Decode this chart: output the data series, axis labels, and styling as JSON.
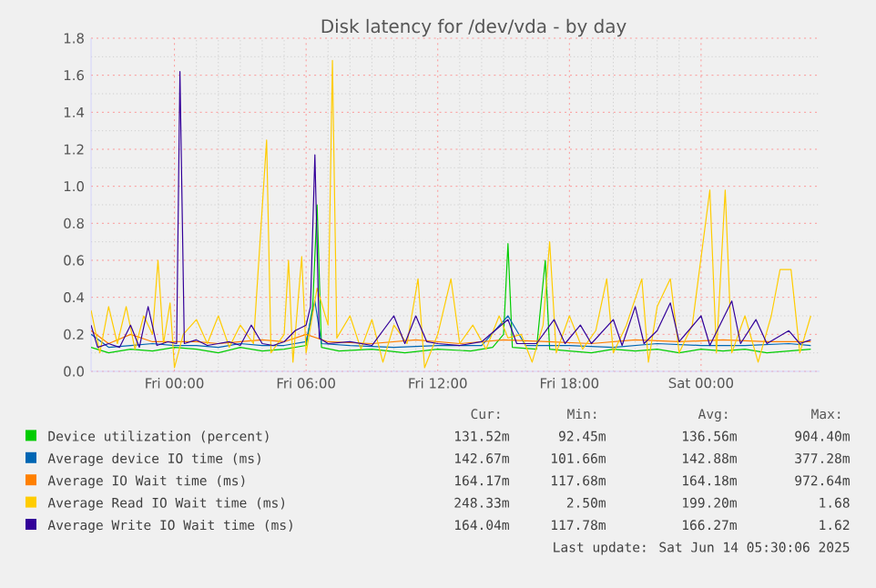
{
  "chart_data": {
    "type": "line",
    "title": "Disk latency for /dev/vda - by day",
    "xlim": [
      "2025-06-12T20:12",
      "2025-06-14T05:24"
    ],
    "xticks": [
      {
        "value": "2025-06-13T00:00",
        "label": "Fri 00:00"
      },
      {
        "value": "2025-06-13T06:00",
        "label": "Fri 06:00"
      },
      {
        "value": "2025-06-13T12:00",
        "label": "Fri 12:00"
      },
      {
        "value": "2025-06-13T18:00",
        "label": "Fri 18:00"
      },
      {
        "value": "2025-06-14T00:00",
        "label": "Sat 00:00"
      }
    ],
    "ylim": [
      0,
      1.8
    ],
    "yticks": [
      {
        "value": 0,
        "label": "0.0"
      },
      0.2,
      0.4,
      0.6,
      0.8,
      {
        "value": 1,
        "label": "1.0"
      },
      1.2,
      1.4,
      1.6,
      1.8
    ],
    "grid": true,
    "legend": "bottom",
    "series": [
      {
        "name": "Device utilization (percent)",
        "color": "#00cc00",
        "x": [
          "2025-06-12T20:12",
          "2025-06-12T21:00",
          "2025-06-12T22:00",
          "2025-06-12T23:00",
          "2025-06-13T00:00",
          "2025-06-13T01:00",
          "2025-06-13T02:00",
          "2025-06-13T03:00",
          "2025-06-13T04:00",
          "2025-06-13T05:00",
          "2025-06-13T06:00",
          "2025-06-13T06:18",
          "2025-06-13T06:30",
          "2025-06-13T06:42",
          "2025-06-13T07:30",
          "2025-06-13T09:00",
          "2025-06-13T10:30",
          "2025-06-13T12:00",
          "2025-06-13T13:30",
          "2025-06-13T14:30",
          "2025-06-13T15:00",
          "2025-06-13T15:12",
          "2025-06-13T15:24",
          "2025-06-13T16:30",
          "2025-06-13T16:54",
          "2025-06-13T17:06",
          "2025-06-13T18:00",
          "2025-06-13T19:00",
          "2025-06-13T20:00",
          "2025-06-13T21:00",
          "2025-06-13T22:00",
          "2025-06-13T23:00",
          "2025-06-14T00:00",
          "2025-06-14T01:00",
          "2025-06-14T02:00",
          "2025-06-14T03:00",
          "2025-06-14T04:00",
          "2025-06-14T05:00"
        ],
        "values": [
          0.13,
          0.1,
          0.12,
          0.11,
          0.13,
          0.12,
          0.1,
          0.13,
          0.11,
          0.12,
          0.14,
          0.35,
          0.9,
          0.13,
          0.11,
          0.12,
          0.1,
          0.12,
          0.11,
          0.13,
          0.2,
          0.69,
          0.13,
          0.12,
          0.6,
          0.12,
          0.11,
          0.1,
          0.12,
          0.11,
          0.12,
          0.1,
          0.12,
          0.11,
          0.12,
          0.1,
          0.11,
          0.12
        ]
      },
      {
        "name": "Average device IO time (ms)",
        "color": "#0066b3",
        "x": [
          "2025-06-12T20:12",
          "2025-06-12T21:00",
          "2025-06-12T22:00",
          "2025-06-12T23:00",
          "2025-06-13T00:00",
          "2025-06-13T01:00",
          "2025-06-13T02:00",
          "2025-06-13T03:00",
          "2025-06-13T04:00",
          "2025-06-13T05:00",
          "2025-06-13T06:00",
          "2025-06-13T06:24",
          "2025-06-13T06:42",
          "2025-06-13T08:00",
          "2025-06-13T10:00",
          "2025-06-13T12:00",
          "2025-06-13T14:00",
          "2025-06-13T15:12",
          "2025-06-13T16:00",
          "2025-06-13T18:00",
          "2025-06-13T20:00",
          "2025-06-13T22:00",
          "2025-06-14T00:00",
          "2025-06-14T02:00",
          "2025-06-14T04:00",
          "2025-06-14T05:00"
        ],
        "values": [
          0.2,
          0.13,
          0.14,
          0.15,
          0.14,
          0.14,
          0.13,
          0.15,
          0.14,
          0.14,
          0.16,
          0.38,
          0.15,
          0.14,
          0.13,
          0.14,
          0.14,
          0.3,
          0.14,
          0.14,
          0.13,
          0.15,
          0.14,
          0.14,
          0.15,
          0.14
        ]
      },
      {
        "name": "Average IO Wait time (ms)",
        "color": "#ff8000",
        "x": [
          "2025-06-12T20:12",
          "2025-06-12T21:00",
          "2025-06-12T22:00",
          "2025-06-12T23:00",
          "2025-06-13T00:00",
          "2025-06-13T01:00",
          "2025-06-13T02:00",
          "2025-06-13T03:00",
          "2025-06-13T04:00",
          "2025-06-13T05:00",
          "2025-06-13T06:00",
          "2025-06-13T07:00",
          "2025-06-13T09:00",
          "2025-06-13T11:00",
          "2025-06-13T13:00",
          "2025-06-13T15:00",
          "2025-06-13T17:00",
          "2025-06-13T19:00",
          "2025-06-13T21:00",
          "2025-06-13T23:00",
          "2025-06-14T01:00",
          "2025-06-14T03:00",
          "2025-06-14T05:00"
        ],
        "values": [
          0.22,
          0.15,
          0.2,
          0.16,
          0.16,
          0.16,
          0.15,
          0.16,
          0.17,
          0.16,
          0.2,
          0.16,
          0.15,
          0.17,
          0.15,
          0.17,
          0.16,
          0.15,
          0.17,
          0.16,
          0.17,
          0.16,
          0.16
        ]
      },
      {
        "name": "Average Read IO Wait time (ms)",
        "color": "#ffcc00",
        "x": [
          "2025-06-12T20:12",
          "2025-06-12T20:36",
          "2025-06-12T21:00",
          "2025-06-12T21:24",
          "2025-06-12T21:48",
          "2025-06-12T22:12",
          "2025-06-12T22:36",
          "2025-06-12T23:00",
          "2025-06-12T23:15",
          "2025-06-12T23:30",
          "2025-06-12T23:48",
          "2025-06-13T00:00",
          "2025-06-13T00:24",
          "2025-06-13T01:00",
          "2025-06-13T01:30",
          "2025-06-13T02:00",
          "2025-06-13T02:30",
          "2025-06-13T03:00",
          "2025-06-13T03:36",
          "2025-06-13T04:12",
          "2025-06-13T04:24",
          "2025-06-13T05:00",
          "2025-06-13T05:12",
          "2025-06-13T05:24",
          "2025-06-13T05:48",
          "2025-06-13T06:00",
          "2025-06-13T06:30",
          "2025-06-13T07:00",
          "2025-06-13T07:12",
          "2025-06-13T07:24",
          "2025-06-13T08:00",
          "2025-06-13T08:30",
          "2025-06-13T09:00",
          "2025-06-13T09:30",
          "2025-06-13T10:00",
          "2025-06-13T10:36",
          "2025-06-13T11:06",
          "2025-06-13T11:24",
          "2025-06-13T12:00",
          "2025-06-13T12:36",
          "2025-06-13T13:00",
          "2025-06-13T13:36",
          "2025-06-13T14:12",
          "2025-06-13T14:48",
          "2025-06-13T15:12",
          "2025-06-13T15:48",
          "2025-06-13T16:18",
          "2025-06-13T16:48",
          "2025-06-13T17:06",
          "2025-06-13T17:24",
          "2025-06-13T18:00",
          "2025-06-13T18:36",
          "2025-06-13T19:12",
          "2025-06-13T19:42",
          "2025-06-13T20:00",
          "2025-06-13T20:36",
          "2025-06-13T21:18",
          "2025-06-13T21:36",
          "2025-06-13T22:00",
          "2025-06-13T22:36",
          "2025-06-13T23:00",
          "2025-06-13T23:36",
          "2025-06-14T00:24",
          "2025-06-14T00:42",
          "2025-06-14T01:06",
          "2025-06-14T01:24",
          "2025-06-14T02:00",
          "2025-06-14T02:36",
          "2025-06-14T03:12",
          "2025-06-14T03:36",
          "2025-06-14T04:06",
          "2025-06-14T04:30",
          "2025-06-14T05:00"
        ],
        "values": [
          0.33,
          0.1,
          0.35,
          0.15,
          0.35,
          0.12,
          0.3,
          0.2,
          0.6,
          0.15,
          0.37,
          0.02,
          0.2,
          0.28,
          0.15,
          0.3,
          0.13,
          0.25,
          0.15,
          1.25,
          0.1,
          0.2,
          0.6,
          0.05,
          0.62,
          0.1,
          0.45,
          0.25,
          1.68,
          0.18,
          0.3,
          0.12,
          0.28,
          0.05,
          0.25,
          0.15,
          0.5,
          0.02,
          0.2,
          0.5,
          0.15,
          0.25,
          0.12,
          0.3,
          0.18,
          0.2,
          0.05,
          0.25,
          0.7,
          0.1,
          0.3,
          0.12,
          0.22,
          0.5,
          0.1,
          0.25,
          0.5,
          0.05,
          0.35,
          0.5,
          0.1,
          0.25,
          0.98,
          0.1,
          0.98,
          0.1,
          0.3,
          0.05,
          0.3,
          0.55,
          0.55,
          0.1,
          0.3
        ]
      },
      {
        "name": "Average Write IO Wait time (ms)",
        "color": "#330099",
        "x": [
          "2025-06-12T20:12",
          "2025-06-12T20:30",
          "2025-06-12T21:00",
          "2025-06-12T21:30",
          "2025-06-12T22:00",
          "2025-06-12T22:24",
          "2025-06-12T22:48",
          "2025-06-12T23:12",
          "2025-06-12T23:42",
          "2025-06-13T00:06",
          "2025-06-13T00:15",
          "2025-06-13T00:27",
          "2025-06-13T01:00",
          "2025-06-13T01:30",
          "2025-06-13T02:00",
          "2025-06-13T02:30",
          "2025-06-13T03:00",
          "2025-06-13T03:30",
          "2025-06-13T04:00",
          "2025-06-13T04:30",
          "2025-06-13T05:00",
          "2025-06-13T05:30",
          "2025-06-13T06:00",
          "2025-06-13T06:12",
          "2025-06-13T06:24",
          "2025-06-13T06:36",
          "2025-06-13T07:00",
          "2025-06-13T08:00",
          "2025-06-13T09:00",
          "2025-06-13T10:00",
          "2025-06-13T10:30",
          "2025-06-13T11:00",
          "2025-06-13T11:30",
          "2025-06-13T12:00",
          "2025-06-13T13:00",
          "2025-06-13T14:00",
          "2025-06-13T15:12",
          "2025-06-13T15:36",
          "2025-06-13T16:30",
          "2025-06-13T17:18",
          "2025-06-13T17:48",
          "2025-06-13T18:30",
          "2025-06-13T19:00",
          "2025-06-13T20:00",
          "2025-06-13T20:24",
          "2025-06-13T21:00",
          "2025-06-13T21:24",
          "2025-06-13T22:00",
          "2025-06-13T22:36",
          "2025-06-13T23:00",
          "2025-06-14T00:00",
          "2025-06-14T00:24",
          "2025-06-14T01:24",
          "2025-06-14T01:48",
          "2025-06-14T02:30",
          "2025-06-14T03:00",
          "2025-06-14T04:00",
          "2025-06-14T04:30",
          "2025-06-14T05:00"
        ],
        "values": [
          0.25,
          0.13,
          0.15,
          0.13,
          0.25,
          0.13,
          0.35,
          0.14,
          0.16,
          0.15,
          1.62,
          0.15,
          0.17,
          0.14,
          0.15,
          0.16,
          0.14,
          0.25,
          0.15,
          0.14,
          0.16,
          0.22,
          0.25,
          0.35,
          1.17,
          0.18,
          0.15,
          0.16,
          0.14,
          0.3,
          0.15,
          0.3,
          0.16,
          0.15,
          0.14,
          0.16,
          0.28,
          0.15,
          0.15,
          0.28,
          0.15,
          0.25,
          0.15,
          0.28,
          0.14,
          0.35,
          0.15,
          0.22,
          0.37,
          0.16,
          0.3,
          0.14,
          0.38,
          0.15,
          0.28,
          0.15,
          0.22,
          0.15,
          0.17
        ]
      }
    ],
    "annotations": [
      "Cur:",
      "Min:",
      "Avg:",
      "Max:",
      "131.52m",
      "92.45m",
      "136.56m",
      "904.40m",
      "142.67m",
      "101.66m",
      "142.88m",
      "377.28m",
      "164.17m",
      "117.68m",
      "164.18m",
      "972.64m",
      "248.33m",
      "2.50m",
      "199.20m",
      "1.68",
      "164.04m",
      "117.78m",
      "166.27m",
      "1.62",
      "Last update: Sat Jun 14 05:30:06 2025"
    ]
  }
}
